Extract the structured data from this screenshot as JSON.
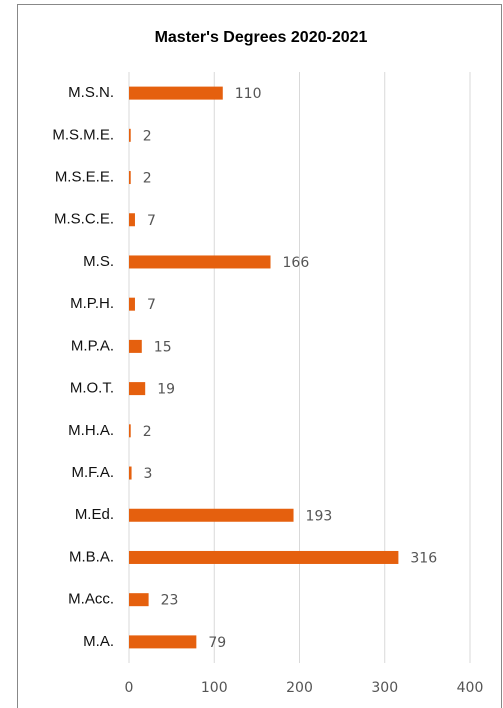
{
  "chart_data": {
    "type": "barh",
    "title": "Master's Degrees 2020-2021",
    "categories": [
      "M.S.N.",
      "M.S.M.E.",
      "M.S.E.E.",
      "M.S.C.E.",
      "M.S.",
      "M.P.H.",
      "M.P.A.",
      "M.O.T.",
      "M.H.A.",
      "M.F.A.",
      "M.Ed.",
      "M.B.A.",
      "M.Acc.",
      "M.A."
    ],
    "values": [
      110,
      2,
      2,
      7,
      166,
      7,
      15,
      19,
      2,
      3,
      193,
      316,
      23,
      79
    ],
    "color": "#e5600e",
    "xlim": [
      0,
      400
    ],
    "xticks": [
      0,
      100,
      200,
      300,
      400
    ],
    "grid": true
  }
}
